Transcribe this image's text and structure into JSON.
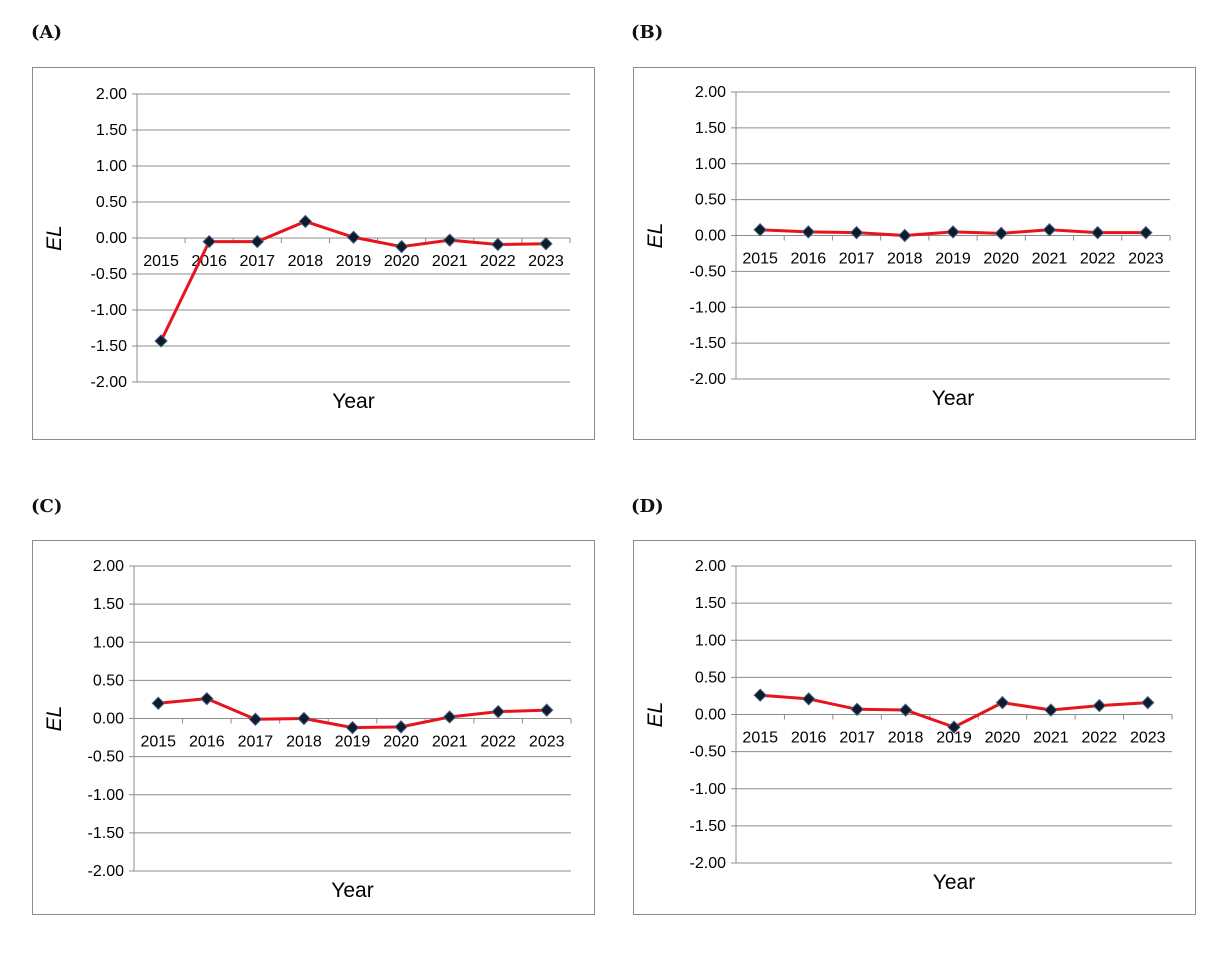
{
  "colors": {
    "line": "#e8141c",
    "marker": "#0d1b2a",
    "marker_stroke": "#4a5f7f",
    "grid": "#8c8c8c"
  },
  "marker_icon": "diamond-icon",
  "chart_data": [
    {
      "panel": "(A)",
      "type": "line",
      "xlabel": "Year",
      "ylabel": "EL",
      "ylim": [
        -2.0,
        2.0
      ],
      "yticks": [
        "2.00",
        "1.50",
        "1.00",
        "0.50",
        "0.00",
        "-0.50",
        "-1.00",
        "-1.50",
        "-2.00"
      ],
      "categories": [
        "2015",
        "2016",
        "2017",
        "2018",
        "2019",
        "2020",
        "2021",
        "2022",
        "2023"
      ],
      "values": [
        -1.43,
        -0.05,
        -0.05,
        0.23,
        0.01,
        -0.12,
        -0.03,
        -0.09,
        -0.08
      ],
      "grid": "horizontal",
      "legend": "none"
    },
    {
      "panel": "(B)",
      "type": "line",
      "xlabel": "Year",
      "ylabel": "EL",
      "ylim": [
        -2.0,
        2.0
      ],
      "yticks": [
        "2.00",
        "1.50",
        "1.00",
        "0.50",
        "0.00",
        "-0.50",
        "-1.00",
        "-1.50",
        "-2.00"
      ],
      "categories": [
        "2015",
        "2016",
        "2017",
        "2018",
        "2019",
        "2020",
        "2021",
        "2022",
        "2023"
      ],
      "values": [
        0.08,
        0.05,
        0.04,
        0.0,
        0.05,
        0.03,
        0.08,
        0.04,
        0.04
      ],
      "grid": "horizontal",
      "legend": "none"
    },
    {
      "panel": "(C)",
      "type": "line",
      "xlabel": "Year",
      "ylabel": "EL",
      "ylim": [
        -2.0,
        2.0
      ],
      "yticks": [
        "2.00",
        "1.50",
        "1.00",
        "0.50",
        "0.00",
        "-0.50",
        "-1.00",
        "-1.50",
        "-2.00"
      ],
      "categories": [
        "2015",
        "2016",
        "2017",
        "2018",
        "2019",
        "2020",
        "2021",
        "2022",
        "2023"
      ],
      "values": [
        0.2,
        0.26,
        -0.01,
        0.0,
        -0.12,
        -0.11,
        0.02,
        0.09,
        0.11
      ],
      "grid": "horizontal",
      "legend": "none"
    },
    {
      "panel": "(D)",
      "type": "line",
      "xlabel": "Year",
      "ylabel": "EL",
      "ylim": [
        -2.0,
        2.0
      ],
      "yticks": [
        "2.00",
        "1.50",
        "1.00",
        "0.50",
        "0.00",
        "-0.50",
        "-1.00",
        "-1.50",
        "-2.00"
      ],
      "categories": [
        "2015",
        "2016",
        "2017",
        "2018",
        "2019",
        "2020",
        "2021",
        "2022",
        "2023"
      ],
      "values": [
        0.26,
        0.21,
        0.07,
        0.06,
        -0.17,
        0.16,
        0.06,
        0.12,
        0.16
      ],
      "grid": "horizontal",
      "legend": "none"
    }
  ]
}
